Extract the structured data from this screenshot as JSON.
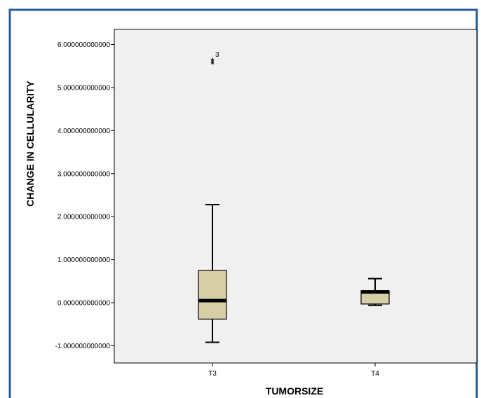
{
  "colors": {
    "frame_border": "#2a5a96",
    "plot_background": "#f0f0f0",
    "box_fill": "#d6cfa6",
    "ink": "#000000"
  },
  "chart_data": {
    "type": "boxplot",
    "xlabel": "TUMORSIZE",
    "ylabel": "CHANGE IN CELLULARITY",
    "ylim": [
      -1.4,
      6.35
    ],
    "yticks": [
      {
        "value": -1,
        "label": "-1.000000000000"
      },
      {
        "value": 0,
        "label": "0.000000000000"
      },
      {
        "value": 1,
        "label": "1.000000000000"
      },
      {
        "value": 2,
        "label": "2.000000000000"
      },
      {
        "value": 3,
        "label": "3.000000000000"
      },
      {
        "value": 4,
        "label": "4.000000000000"
      },
      {
        "value": 5,
        "label": "5.000000000000"
      },
      {
        "value": 6,
        "label": "6.000000000000"
      }
    ],
    "categories": [
      "T3",
      "T4"
    ],
    "boxes": [
      {
        "category": "T3",
        "whisker_low": -0.92,
        "q1": -0.38,
        "median": 0.05,
        "q3": 0.75,
        "whisker_high": 2.28,
        "outliers": [
          {
            "value": 5.62,
            "label": "3",
            "marker": "*"
          },
          {
            "value": 5.55,
            "label": "",
            "marker": "*"
          }
        ]
      },
      {
        "category": "T4",
        "whisker_low": -0.06,
        "q1": -0.03,
        "median": 0.25,
        "q3": 0.28,
        "whisker_high": 0.56,
        "outliers": []
      }
    ],
    "grid": false,
    "legend": "none"
  }
}
